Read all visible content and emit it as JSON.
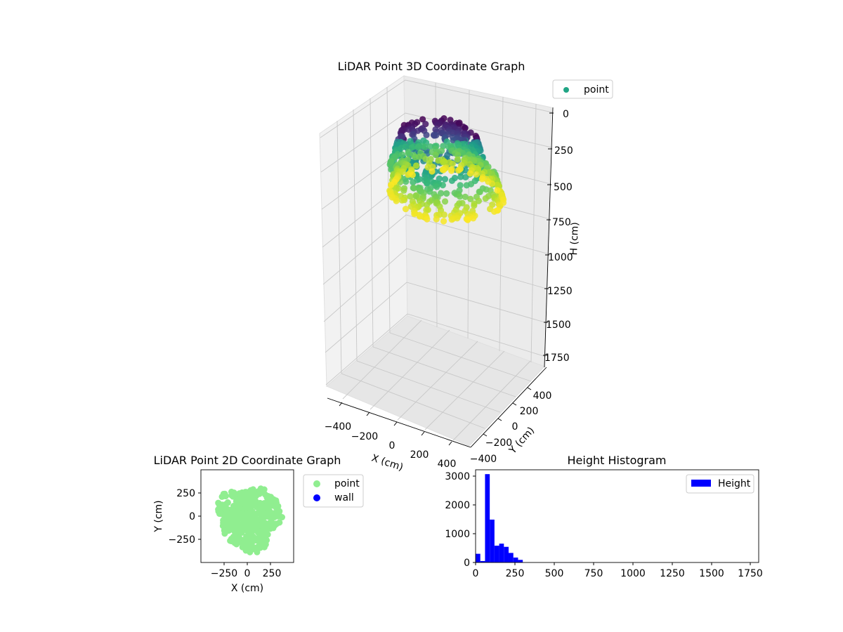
{
  "chart_data": [
    {
      "type": "scatter3d",
      "title": "LiDAR Point 3D Coordinate Graph",
      "xlabel": "X (cm)",
      "ylabel": "Y (cm)",
      "zlabel": "H (cm)",
      "xlim": [
        -500,
        500
      ],
      "ylim": [
        -500,
        500
      ],
      "zlim": [
        0,
        1800
      ],
      "z_inverted": true,
      "xticks": [
        "−400",
        "−200",
        "0",
        "200",
        "400"
      ],
      "yticks": [
        "−400",
        "−200",
        "0",
        "200",
        "400"
      ],
      "zticks": [
        "0",
        "250",
        "500",
        "750",
        "1000",
        "1250",
        "1500",
        "1750"
      ],
      "colormap": "viridis",
      "legend": [
        {
          "label": "point",
          "color": "#21a585"
        }
      ],
      "legend_loc": "upper-right"
    },
    {
      "type": "scatter",
      "title": "LiDAR Point 2D Coordinate Graph",
      "xlabel": "X (cm)",
      "ylabel": "Y (cm)",
      "xlim": [
        -500,
        500
      ],
      "ylim": [
        -500,
        500
      ],
      "xticks": [
        "−250",
        "0",
        "250"
      ],
      "yticks": [
        "250",
        "0",
        "−250"
      ],
      "series": [
        {
          "name": "point",
          "color": "#90ee90",
          "extent_x": [
            -330,
            400
          ],
          "extent_y": [
            -400,
            340
          ]
        },
        {
          "name": "wall",
          "color": "#0000ff"
        }
      ],
      "legend_loc": "outside-right"
    },
    {
      "type": "bar",
      "title": "Height Histogram",
      "xlabel": "",
      "ylabel": "",
      "xlim": [
        0,
        1800
      ],
      "ylim": [
        0,
        3200
      ],
      "xticks": [
        "0",
        "250",
        "500",
        "750",
        "1000",
        "1250",
        "1500",
        "1750"
      ],
      "yticks": [
        "0",
        "1000",
        "2000",
        "3000"
      ],
      "bin_width": 30,
      "bin_starts": [
        0,
        30,
        60,
        90,
        120,
        150,
        180,
        210,
        240,
        270,
        300
      ],
      "values": [
        300,
        50,
        3050,
        1480,
        580,
        650,
        540,
        330,
        170,
        90,
        0
      ],
      "series": [
        {
          "name": "Height",
          "color": "#0000ff"
        }
      ],
      "legend_loc": "upper-right"
    }
  ]
}
